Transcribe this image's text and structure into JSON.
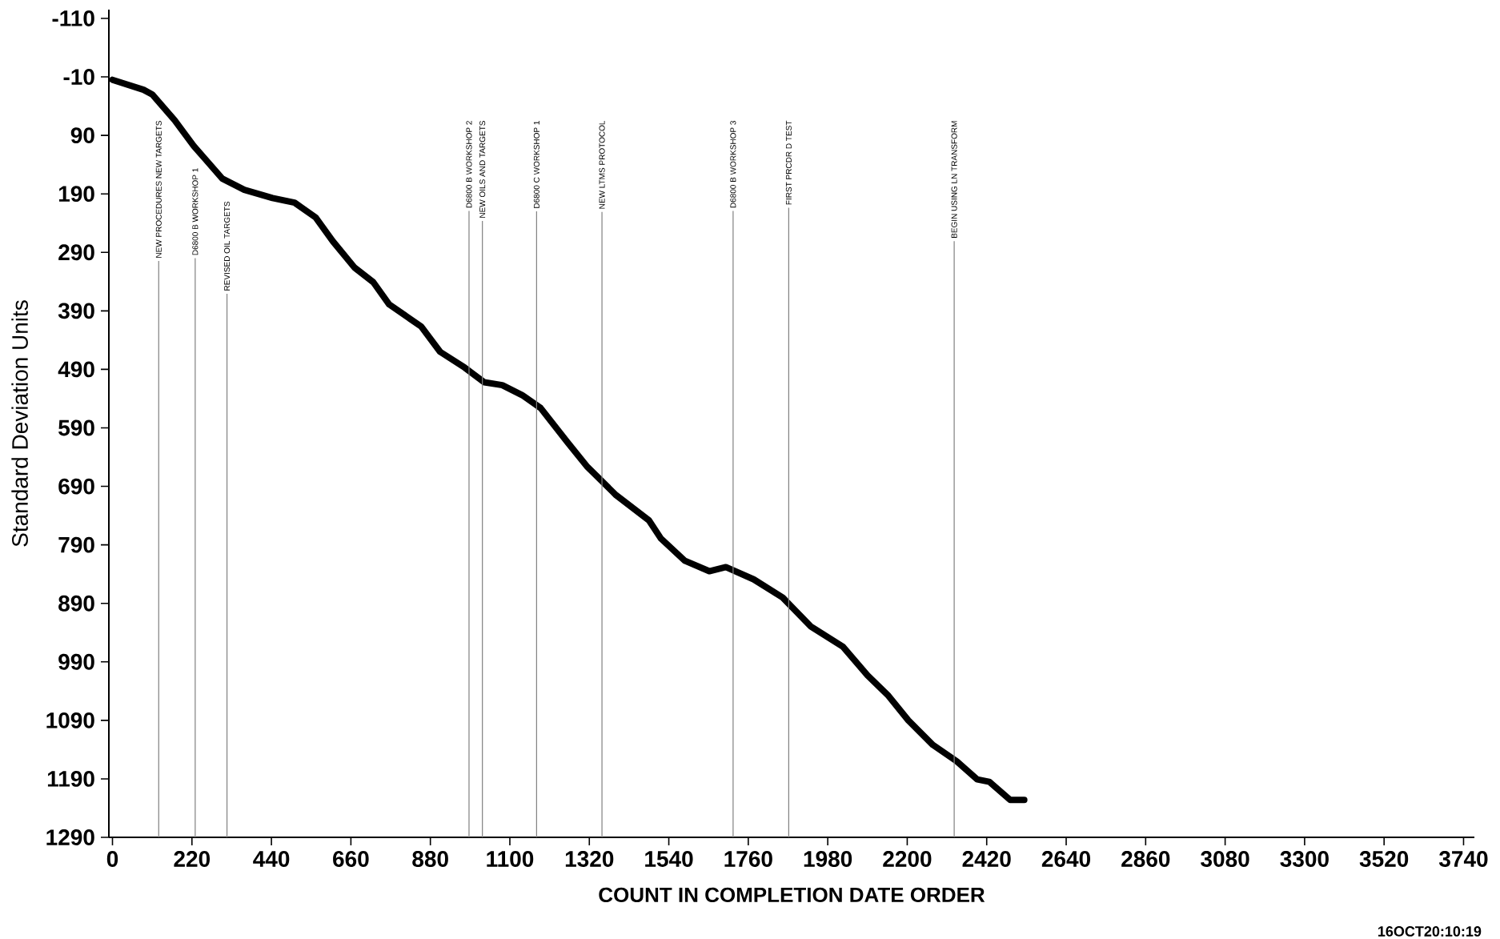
{
  "chart_data": {
    "type": "line",
    "xlabel": "COUNT IN COMPLETION DATE ORDER",
    "ylabel": "Standard Deviation Units",
    "annotations": [
      "16OCT20:10:19"
    ],
    "xlim": [
      -10,
      3770
    ],
    "ylim": [
      1290,
      -125
    ],
    "xticks": [
      0,
      220,
      440,
      660,
      880,
      1100,
      1320,
      1540,
      1760,
      1980,
      2200,
      2420,
      2640,
      2860,
      3080,
      3300,
      3520,
      3740
    ],
    "yticks": [
      -110,
      -10,
      90,
      190,
      290,
      390,
      490,
      590,
      690,
      790,
      890,
      990,
      1090,
      1190,
      1290
    ],
    "series": [
      {
        "color": "#000000",
        "x": [
          0,
          86,
          110,
          172,
          225,
          304,
          365,
          443,
          504,
          562,
          610,
          670,
          722,
          766,
          855,
          907,
          975,
          1029,
          1079,
          1134,
          1185,
          1260,
          1315,
          1394,
          1485,
          1518,
          1584,
          1652,
          1698,
          1775,
          1855,
          1934,
          2022,
          2090,
          2148,
          2203,
          2271,
          2337,
          2394,
          2427,
          2485,
          2524
        ],
        "values": [
          -5,
          12,
          20,
          64,
          108,
          164,
          183,
          197,
          205,
          230,
          271,
          316,
          341,
          379,
          417,
          460,
          487,
          512,
          517,
          534,
          556,
          615,
          657,
          705,
          748,
          779,
          817,
          835,
          828,
          849,
          880,
          930,
          964,
          1013,
          1048,
          1090,
          1132,
          1160,
          1191,
          1195,
          1226,
          1226
        ]
      }
    ],
    "ref_lines": [
      {
        "axis": "x",
        "value": 128,
        "label": "NEW PROCEDURES NEW TARGETS",
        "color": "#808080"
      },
      {
        "axis": "x",
        "value": 229,
        "label": "D6800 B WORKSHOP 1",
        "color": "#808080"
      },
      {
        "axis": "x",
        "value": 317,
        "label": "REVISED OIL TARGETS",
        "color": "#808080"
      },
      {
        "axis": "x",
        "value": 987,
        "label": "D6800 B WORKSHOP 2",
        "color": "#808080"
      },
      {
        "axis": "x",
        "value": 1024,
        "label": "NEW OILS AND TARGETS",
        "color": "#808080"
      },
      {
        "axis": "x",
        "value": 1174,
        "label": "D6800 C WORKSHOP 1",
        "color": "#808080"
      },
      {
        "axis": "x",
        "value": 1355,
        "label": "NEW LTMS PROTOCOL",
        "color": "#808080"
      },
      {
        "axis": "x",
        "value": 1718,
        "label": "D6800 B WORKSHOP 3",
        "color": "#808080"
      },
      {
        "axis": "x",
        "value": 1872,
        "label": "FIRST PRCDR D TEST",
        "color": "#808080"
      },
      {
        "axis": "x",
        "value": 2330,
        "label": "BEGIN USING LN TRANSFORM",
        "color": "#808080"
      }
    ]
  }
}
